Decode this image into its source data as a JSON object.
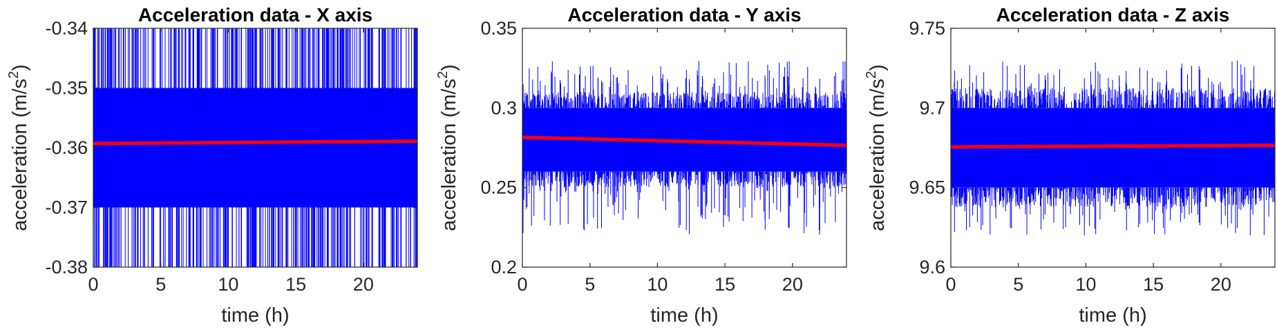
{
  "chart_data": [
    {
      "type": "line",
      "title": "Acceleration data - X axis",
      "xlabel": "time (h)",
      "ylabel": {
        "main": "acceleration (m/s",
        "sup": "2",
        "end": ")"
      },
      "xlim": [
        0,
        24
      ],
      "ylim": [
        -0.38,
        -0.34
      ],
      "xticks": [
        0,
        5,
        10,
        15,
        20
      ],
      "xtick_labels": [
        "0",
        "5",
        "10",
        "15",
        "20"
      ],
      "yticks": [
        -0.38,
        -0.37,
        -0.36,
        -0.35,
        -0.34
      ],
      "ytick_labels": [
        "-0.38",
        "-0.37",
        "-0.36",
        "-0.35",
        "-0.34"
      ],
      "grid": false,
      "series": [
        {
          "role": "raw",
          "color": "#0000ff",
          "band": [
            -0.37,
            -0.35
          ],
          "spike_range": [
            -0.38,
            -0.34
          ]
        },
        {
          "role": "trend",
          "color": "#ff0000",
          "x": [
            0,
            24
          ],
          "y": [
            -0.3593,
            -0.3589
          ]
        }
      ]
    },
    {
      "type": "line",
      "title": "Acceleration data - Y axis",
      "xlabel": "time (h)",
      "ylabel": {
        "main": "acceleration (m/s",
        "sup": "2",
        "end": ")"
      },
      "xlim": [
        0,
        24
      ],
      "ylim": [
        0.2,
        0.35
      ],
      "xticks": [
        0,
        5,
        10,
        15,
        20
      ],
      "xtick_labels": [
        "0",
        "5",
        "10",
        "15",
        "20"
      ],
      "yticks": [
        0.2,
        0.25,
        0.3,
        0.35
      ],
      "ytick_labels": [
        "0.2",
        "0.25",
        "0.3",
        "0.35"
      ],
      "grid": false,
      "series": [
        {
          "role": "raw",
          "color": "#0000ff",
          "band": [
            0.26,
            0.3
          ],
          "spike_range": [
            0.22,
            0.33
          ]
        },
        {
          "role": "trend",
          "color": "#ff0000",
          "x": [
            0,
            24
          ],
          "y": [
            0.2815,
            0.2765
          ]
        }
      ]
    },
    {
      "type": "line",
      "title": "Acceleration data - Z axis",
      "xlabel": "time (h)",
      "ylabel": {
        "main": "acceleration (m/s",
        "sup": "2",
        "end": ")"
      },
      "xlim": [
        0,
        24
      ],
      "ylim": [
        9.6,
        9.75
      ],
      "xticks": [
        0,
        5,
        10,
        15,
        20
      ],
      "xtick_labels": [
        "0",
        "5",
        "10",
        "15",
        "20"
      ],
      "yticks": [
        9.6,
        9.65,
        9.7,
        9.75
      ],
      "ytick_labels": [
        "9.6",
        "9.65",
        "9.7",
        "9.75"
      ],
      "grid": false,
      "series": [
        {
          "role": "raw",
          "color": "#0000ff",
          "band": [
            9.65,
            9.7
          ],
          "spike_range": [
            9.62,
            9.73
          ]
        },
        {
          "role": "trend",
          "color": "#ff0000",
          "x": [
            0,
            24
          ],
          "y": [
            9.6755,
            9.6765
          ]
        }
      ]
    }
  ]
}
